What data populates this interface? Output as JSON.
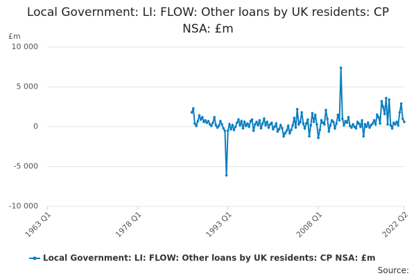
{
  "chart_data": {
    "type": "line",
    "title": "Local Government: LI: FLOW: Other loans by UK residents: CP NSA: £m",
    "y_label": "£m",
    "source": "Source:",
    "x": [
      "1987 Q1",
      "1987 Q2",
      "1987 Q3",
      "1987 Q4",
      "1988 Q1",
      "1988 Q2",
      "1988 Q3",
      "1988 Q4",
      "1989 Q1",
      "1989 Q2",
      "1989 Q3",
      "1989 Q4",
      "1990 Q1",
      "1990 Q2",
      "1990 Q3",
      "1990 Q4",
      "1991 Q1",
      "1991 Q2",
      "1991 Q3",
      "1991 Q4",
      "1992 Q1",
      "1992 Q2",
      "1992 Q3",
      "1992 Q4",
      "1993 Q1",
      "1993 Q2",
      "1993 Q3",
      "1993 Q4",
      "1994 Q1",
      "1994 Q2",
      "1994 Q3",
      "1994 Q4",
      "1995 Q1",
      "1995 Q2",
      "1995 Q3",
      "1995 Q4",
      "1996 Q1",
      "1996 Q2",
      "1996 Q3",
      "1996 Q4",
      "1997 Q1",
      "1997 Q2",
      "1997 Q3",
      "1997 Q4",
      "1998 Q1",
      "1998 Q2",
      "1998 Q3",
      "1998 Q4",
      "1999 Q1",
      "1999 Q2",
      "1999 Q3",
      "1999 Q4",
      "2000 Q1",
      "2000 Q2",
      "2000 Q3",
      "2000 Q4",
      "2001 Q1",
      "2001 Q2",
      "2001 Q3",
      "2001 Q4",
      "2002 Q1",
      "2002 Q2",
      "2002 Q3",
      "2002 Q4",
      "2003 Q1",
      "2003 Q2",
      "2003 Q3",
      "2003 Q4",
      "2004 Q1",
      "2004 Q2",
      "2004 Q3",
      "2004 Q4",
      "2005 Q1",
      "2005 Q2",
      "2005 Q3",
      "2005 Q4",
      "2006 Q1",
      "2006 Q2",
      "2006 Q3",
      "2006 Q4",
      "2007 Q1",
      "2007 Q2",
      "2007 Q3",
      "2007 Q4",
      "2008 Q1",
      "2008 Q2",
      "2008 Q3",
      "2008 Q4",
      "2009 Q1",
      "2009 Q2",
      "2009 Q3",
      "2009 Q4",
      "2010 Q1",
      "2010 Q2",
      "2010 Q3",
      "2010 Q4",
      "2011 Q1",
      "2011 Q2",
      "2011 Q3",
      "2011 Q4",
      "2012 Q1",
      "2012 Q2",
      "2012 Q3",
      "2012 Q4",
      "2013 Q1",
      "2013 Q2",
      "2013 Q3",
      "2013 Q4",
      "2014 Q1",
      "2014 Q2",
      "2014 Q3",
      "2014 Q4",
      "2015 Q1",
      "2015 Q2",
      "2015 Q3",
      "2015 Q4",
      "2016 Q1",
      "2016 Q2",
      "2016 Q3",
      "2016 Q4",
      "2017 Q1",
      "2017 Q2",
      "2017 Q3",
      "2017 Q4",
      "2018 Q1",
      "2018 Q2",
      "2018 Q3",
      "2018 Q4",
      "2019 Q1",
      "2019 Q2",
      "2019 Q3",
      "2019 Q4",
      "2020 Q1",
      "2020 Q2",
      "2020 Q3",
      "2020 Q4",
      "2021 Q1",
      "2021 Q2",
      "2021 Q3",
      "2021 Q4",
      "2022 Q1",
      "2022 Q2"
    ],
    "series": [
      {
        "name": "Local Government: LI: FLOW: Other loans by UK residents: CP NSA: £m",
        "color": "#0b7ec1",
        "values": [
          1800,
          2300,
          400,
          100,
          700,
          1400,
          900,
          1200,
          600,
          800,
          500,
          700,
          300,
          100,
          500,
          1200,
          200,
          -100,
          100,
          700,
          300,
          -200,
          -500,
          -6100,
          -500,
          300,
          -300,
          200,
          -400,
          0,
          500,
          900,
          200,
          700,
          -200,
          600,
          100,
          400,
          0,
          700,
          900,
          -500,
          300,
          600,
          200,
          800,
          -200,
          400,
          1000,
          200,
          600,
          -100,
          300,
          500,
          -300,
          0,
          400,
          -600,
          -300,
          200,
          -200,
          -1200,
          -800,
          -500,
          100,
          -800,
          -400,
          200,
          1100,
          -100,
          2200,
          300,
          600,
          1800,
          400,
          -200,
          400,
          900,
          -1200,
          200,
          1700,
          600,
          1500,
          300,
          -1400,
          -400,
          800,
          500,
          300,
          2100,
          1000,
          -600,
          200,
          800,
          600,
          -200,
          400,
          1500,
          800,
          7400,
          1000,
          200,
          700,
          500,
          1200,
          100,
          -100,
          300,
          0,
          -200,
          600,
          400,
          0,
          800,
          -1200,
          300,
          0,
          500,
          -100,
          200,
          400,
          800,
          300,
          1500,
          1200,
          400,
          3200,
          2500,
          1600,
          3600,
          300,
          3400,
          200,
          -200,
          500,
          300,
          600,
          200,
          1800,
          2900,
          1000,
          600
        ]
      }
    ],
    "xlim": [
      "1963 Q1",
      "2022 Q2"
    ],
    "xticks": [
      "1963 Q1",
      "1978 Q1",
      "1993 Q1",
      "2008 Q1",
      "2022 Q2"
    ],
    "ylim": [
      -10000,
      10000
    ],
    "yticks": [
      {
        "value": -10000,
        "label": "-10 000"
      },
      {
        "value": -5000,
        "label": "-5 000"
      },
      0,
      {
        "value": 5000,
        "label": "5 000"
      },
      {
        "value": 10000,
        "label": "10 000"
      }
    ],
    "grid": true
  }
}
